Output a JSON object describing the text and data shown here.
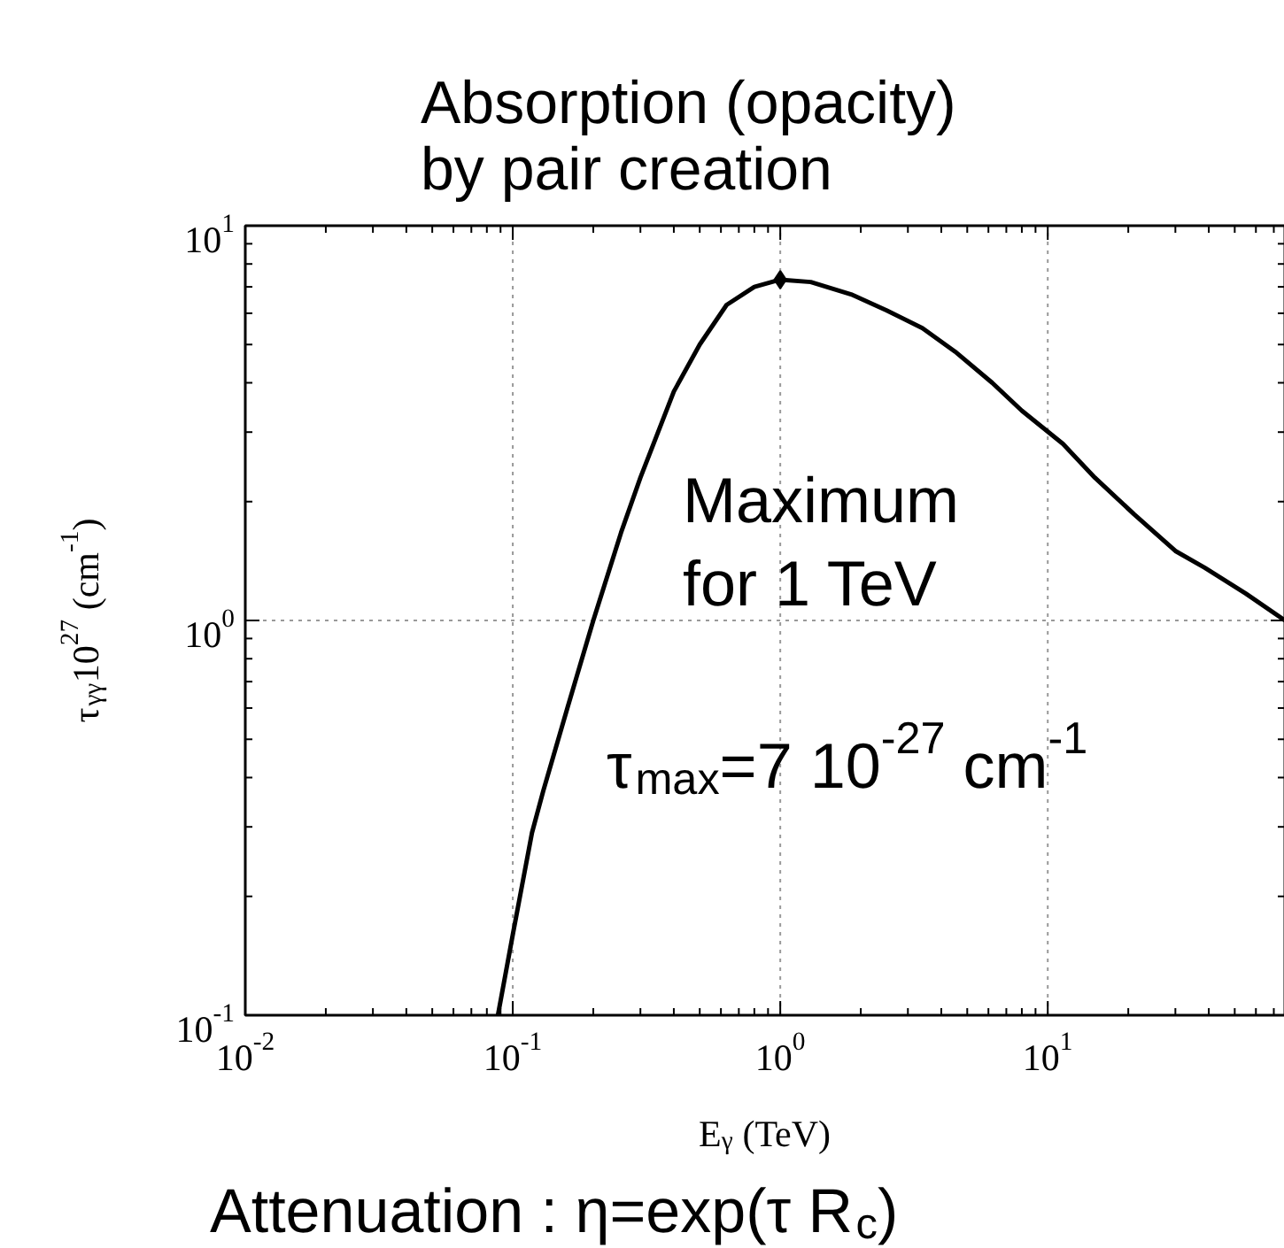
{
  "chart_data": {
    "type": "line",
    "title": "Absorption (opacity)\nby pair creation",
    "xlabel": "E$_{γ}$ (TeV)",
    "ylabel": "τ$_{γγ}$10$^{27}$ (cm$^{-1}$)",
    "log": "xy",
    "grid": true,
    "xlim": [
      0.01,
      77
    ],
    "ylim": [
      0.1,
      10
    ],
    "xticks": [
      {
        "value": 0.01,
        "label": "10$^{-2}$"
      },
      {
        "value": 0.1,
        "label": "10$^{-1}$"
      },
      {
        "value": 1,
        "label": "10$^{0}$"
      },
      {
        "value": 10,
        "label": "10$^{1}$"
      }
    ],
    "yticks": [
      {
        "value": 0.1,
        "label": "10$^{-1}$"
      },
      {
        "value": 1,
        "label": "10$^{0}$"
      },
      {
        "value": 10,
        "label": "10$^{1}$"
      }
    ],
    "series": [
      {
        "color": "#000000",
        "marker": "none",
        "line_style": "solid",
        "x": [
          0.088,
          0.1,
          0.118,
          0.13,
          0.16,
          0.2,
          0.254,
          0.3,
          0.4,
          0.5,
          0.63,
          0.8,
          1,
          1.3,
          1.84,
          2.5,
          3.4,
          4.5,
          6.2,
          8,
          11.4,
          15,
          21,
          30,
          38.6,
          55,
          77
        ],
        "values": [
          0.1,
          0.16,
          0.29,
          0.37,
          0.6,
          1.0,
          1.67,
          2.3,
          3.8,
          5.0,
          6.3,
          7.0,
          7.3,
          7.2,
          6.7,
          6.1,
          5.5,
          4.8,
          4.0,
          3.4,
          2.8,
          2.3,
          1.86,
          1.5,
          1.36,
          1.17,
          1.0
        ]
      },
      {
        "type": "scatter",
        "color": "#000000",
        "marker": "diamond",
        "x": [
          1
        ],
        "values": [
          7.3
        ]
      }
    ],
    "annotations": [
      "Maximum\nfor 1 TeV",
      "τ$_{max}$=7 10$^{-27}$ cm$^{-1}$",
      "Attenuation : η=exp(τ R$_{c}$)"
    ]
  }
}
